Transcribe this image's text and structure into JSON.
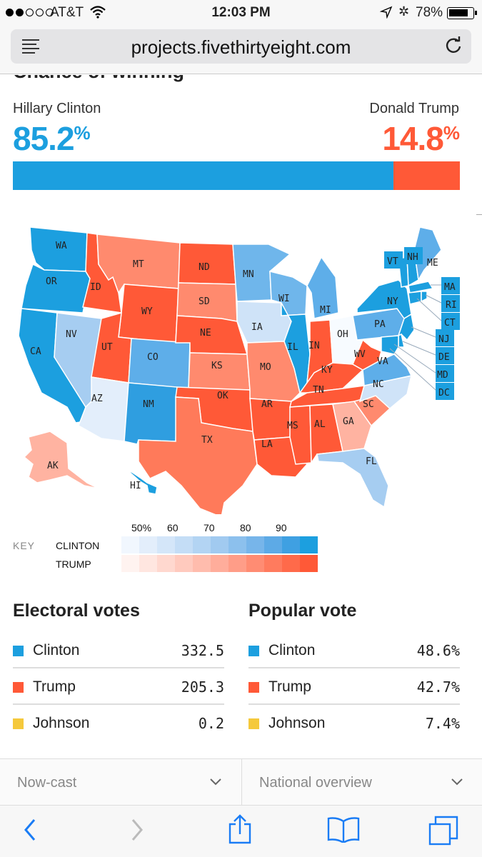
{
  "status_bar": {
    "carrier": "AT&T",
    "time": "12:03 PM",
    "battery": "78%"
  },
  "browser": {
    "url": "projects.fivethirtyeight.com"
  },
  "chance": {
    "title": "Chance of winning",
    "candidates": [
      {
        "name": "Hillary Clinton",
        "value": "85.2",
        "unit": "%",
        "color": "#1c9fdf"
      },
      {
        "name": "Donald Trump",
        "value": "14.8",
        "unit": "%",
        "color": "#ff5937"
      }
    ],
    "clinton_fraction": 0.852
  },
  "map": {
    "states": [
      "WA",
      "OR",
      "CA",
      "NV",
      "ID",
      "MT",
      "WY",
      "UT",
      "AZ",
      "CO",
      "NM",
      "ND",
      "SD",
      "NE",
      "KS",
      "OK",
      "TX",
      "MN",
      "IA",
      "MO",
      "AR",
      "LA",
      "WI",
      "IL",
      "MI",
      "IN",
      "OH",
      "KY",
      "TN",
      "MS",
      "AL",
      "GA",
      "FL",
      "SC",
      "NC",
      "VA",
      "WV",
      "PA",
      "NY",
      "VT",
      "NH",
      "ME",
      "MA",
      "RI",
      "CT",
      "NJ",
      "DE",
      "MD",
      "DC",
      "AK",
      "HI"
    ],
    "icons": {
      "clinton": "#1c9fdf",
      "trump": "#ff5937"
    }
  },
  "key": {
    "label": "KEY",
    "ticks": [
      "50%",
      "60",
      "70",
      "80",
      "90"
    ],
    "rows": [
      "CLINTON",
      "TRUMP"
    ]
  },
  "electoral_votes": {
    "title": "Electoral votes",
    "rows": [
      {
        "name": "Clinton",
        "value": "332.5",
        "color": "#1c9fdf"
      },
      {
        "name": "Trump",
        "value": "205.3",
        "color": "#ff5937"
      },
      {
        "name": "Johnson",
        "value": "0.2",
        "color": "#f5c93c"
      }
    ]
  },
  "popular_vote": {
    "title": "Popular vote",
    "rows": [
      {
        "name": "Clinton",
        "value": "48.6%",
        "color": "#1c9fdf"
      },
      {
        "name": "Trump",
        "value": "42.7%",
        "color": "#ff5937"
      },
      {
        "name": "Johnson",
        "value": "7.4%",
        "color": "#f5c93c"
      }
    ]
  },
  "dropdowns": [
    {
      "label": "Now-cast"
    },
    {
      "label": "National overview"
    }
  ],
  "toolbar": {
    "icons": [
      "back-icon",
      "forward-icon",
      "share-icon",
      "bookmarks-icon",
      "tabs-icon"
    ]
  }
}
